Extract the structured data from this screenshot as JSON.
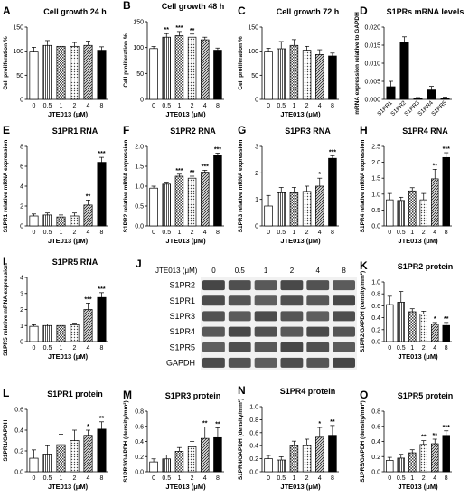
{
  "figure": {
    "chart_data": [
      {
        "letter": "A",
        "type": "bar",
        "title": "Cell growth 24 h",
        "ylabel": "Cell proliferation %",
        "xlabel": "JTE013 (μM)",
        "categories": [
          "0",
          "0.5",
          "1",
          "2",
          "4",
          "8"
        ],
        "ylim": [
          0,
          150
        ],
        "yticks": [
          0,
          50,
          100,
          150
        ],
        "values": [
          100,
          112,
          110,
          110,
          112,
          102
        ],
        "errors": [
          8,
          10,
          9,
          8,
          9,
          7
        ],
        "sig": [
          "",
          "",
          "",
          "",
          "",
          ""
        ],
        "patterns": [
          "white",
          "vstripe",
          "check",
          "dotted",
          "dense",
          "black"
        ]
      },
      {
        "letter": "B",
        "type": "bar",
        "title": "Cell growth 48 h",
        "ylabel": "Cell proliferation %",
        "xlabel": "JTE013 (μM)",
        "categories": [
          "0",
          "0.5",
          "1",
          "2",
          "4",
          "8"
        ],
        "ylim": [
          0,
          150
        ],
        "yticks": [
          0,
          50,
          100,
          150
        ],
        "values": [
          98,
          120,
          123,
          120,
          115,
          95
        ],
        "errors": [
          4,
          7,
          8,
          6,
          5,
          4
        ],
        "sig": [
          "",
          "**",
          "***",
          "**",
          "",
          ""
        ],
        "patterns": [
          "white",
          "vstripe",
          "check",
          "dotted",
          "dense",
          "black"
        ]
      },
      {
        "letter": "C",
        "type": "bar",
        "title": "Cell growth 72 h",
        "ylabel": "Cell proliferation %",
        "xlabel": "JTE013 (μM)",
        "categories": [
          "0",
          "0.5",
          "1",
          "2",
          "4",
          "8"
        ],
        "ylim": [
          0,
          150
        ],
        "yticks": [
          0,
          50,
          100,
          150
        ],
        "values": [
          100,
          105,
          112,
          102,
          93,
          90
        ],
        "errors": [
          6,
          15,
          12,
          8,
          10,
          6
        ],
        "sig": [
          "",
          "",
          "",
          "",
          "",
          ""
        ],
        "patterns": [
          "white",
          "vstripe",
          "check",
          "dotted",
          "dense",
          "black"
        ]
      },
      {
        "letter": "D",
        "type": "bar",
        "title": "S1PRs mRNA levels",
        "ylabel": "mRNA expression relative to GAPDH",
        "xlabel": "",
        "categories": [
          "S1PR1",
          "S1PR2",
          "S1PR3",
          "S1PR4",
          "S1PR5"
        ],
        "rotate": true,
        "ylim": [
          0,
          0.02
        ],
        "yticks": [
          0.0,
          0.005,
          0.01,
          0.015,
          0.02
        ],
        "ytickLabels": [
          "0.000",
          "0.005",
          "0.010",
          "0.015",
          "0.020"
        ],
        "values": [
          0.0035,
          0.0158,
          0.0003,
          0.0026,
          0.0004
        ],
        "errors": [
          0.0015,
          0.0015,
          0.0002,
          0.001,
          0.0002
        ],
        "sig": [
          "",
          "",
          "",
          "",
          ""
        ],
        "patterns": [
          "black",
          "black",
          "black",
          "black",
          "black"
        ]
      },
      {
        "letter": "E",
        "type": "bar",
        "title": "S1PR1 RNA",
        "ylabel": "S1PR1 relative mRNA expression",
        "xlabel": "JTE013 (μM)",
        "categories": [
          "0",
          "0.5",
          "1",
          "2",
          "4",
          "8"
        ],
        "ylim": [
          0,
          8
        ],
        "yticks": [
          0,
          2,
          4,
          6,
          8
        ],
        "values": [
          1.0,
          1.1,
          0.9,
          1.0,
          2.1,
          6.4
        ],
        "errors": [
          0.2,
          0.2,
          0.2,
          0.3,
          0.5,
          0.5
        ],
        "sig": [
          "",
          "",
          "",
          "",
          "**",
          "***"
        ],
        "patterns": [
          "white",
          "vstripe",
          "check",
          "dotted",
          "dense",
          "black"
        ]
      },
      {
        "letter": "F",
        "type": "bar",
        "title": "S1PR2 RNA",
        "ylabel": "S1PR2 relative mRNA expression",
        "xlabel": "JTE013 (μM)",
        "categories": [
          "0",
          "0.5",
          "1",
          "2",
          "4",
          "8"
        ],
        "ylim": [
          0,
          2.0
        ],
        "yticks": [
          0,
          0.5,
          1.0,
          1.5,
          2.0
        ],
        "ytickLabels": [
          "0.0",
          "0.5",
          "1.0",
          "1.5",
          "2.0"
        ],
        "values": [
          0.95,
          1.05,
          1.25,
          1.2,
          1.35,
          1.78
        ],
        "errors": [
          0.05,
          0.05,
          0.05,
          0.05,
          0.05,
          0.05
        ],
        "sig": [
          "",
          "",
          "***",
          "**",
          "***",
          "***"
        ],
        "patterns": [
          "white",
          "vstripe",
          "check",
          "dotted",
          "dense",
          "black"
        ]
      },
      {
        "letter": "G",
        "type": "bar",
        "title": "S1PR3 RNA",
        "ylabel": "S1PR3 relative mRNA expression",
        "xlabel": "JTE013 (μM)",
        "categories": [
          "0",
          "0.5",
          "1",
          "2",
          "4",
          "8"
        ],
        "ylim": [
          0,
          3
        ],
        "yticks": [
          0,
          1,
          2,
          3
        ],
        "values": [
          0.75,
          1.25,
          1.25,
          1.3,
          1.5,
          2.55
        ],
        "errors": [
          0.4,
          0.2,
          0.2,
          0.2,
          0.3,
          0.1
        ],
        "sig": [
          "",
          "",
          "",
          "",
          "*",
          "***"
        ],
        "patterns": [
          "white",
          "vstripe",
          "check",
          "dotted",
          "dense",
          "black"
        ]
      },
      {
        "letter": "H",
        "type": "bar",
        "title": "S1PR4 RNA",
        "ylabel": "S1PR4 relative mRNA expression",
        "xlabel": "JTE013 (μM)",
        "categories": [
          "0",
          "0.5",
          "1",
          "2",
          "4",
          "8"
        ],
        "ylim": [
          0,
          2.5
        ],
        "yticks": [
          0,
          0.5,
          1.0,
          1.5,
          2.0,
          2.5
        ],
        "ytickLabels": [
          "0.0",
          "0.5",
          "1.0",
          "1.5",
          "2.0",
          "2.5"
        ],
        "values": [
          0.82,
          0.8,
          1.1,
          0.82,
          1.48,
          2.15
        ],
        "errors": [
          0.2,
          0.1,
          0.1,
          0.2,
          0.3,
          0.15
        ],
        "sig": [
          "",
          "",
          "",
          "",
          "**",
          "***"
        ],
        "patterns": [
          "white",
          "vstripe",
          "check",
          "dotted",
          "dense",
          "black"
        ]
      },
      {
        "letter": "I",
        "type": "bar",
        "title": "S1PR5 RNA",
        "ylabel": "S1PR5 relative mRNA expression",
        "xlabel": "JTE013 (μM)",
        "categories": [
          "0",
          "0.5",
          "1",
          "2",
          "4",
          "8"
        ],
        "ylim": [
          0,
          4
        ],
        "yticks": [
          0,
          1,
          2,
          3,
          4
        ],
        "values": [
          0.95,
          1.0,
          1.0,
          1.05,
          2.0,
          2.75
        ],
        "errors": [
          0.1,
          0.1,
          0.1,
          0.1,
          0.4,
          0.3
        ],
        "sig": [
          "",
          "",
          "",
          "",
          "***",
          "***"
        ],
        "patterns": [
          "white",
          "vstripe",
          "check",
          "dotted",
          "dense",
          "black"
        ]
      },
      {
        "letter": "K",
        "type": "bar",
        "title": "S1PR2 protein",
        "ylabel": "S1PR2/GAPDH (density/mm²)",
        "xlabel": "JTE013 (μM)",
        "categories": [
          "0",
          "0.5",
          "1",
          "2",
          "4",
          "8"
        ],
        "ylim": [
          0,
          1.0
        ],
        "yticks": [
          0,
          0.2,
          0.4,
          0.6,
          0.8,
          1.0
        ],
        "ytickLabels": [
          "0.0",
          "0.2",
          "0.4",
          "0.6",
          "0.8",
          "1.0"
        ],
        "values": [
          0.62,
          0.66,
          0.5,
          0.46,
          0.29,
          0.27
        ],
        "errors": [
          0.14,
          0.18,
          0.05,
          0.05,
          0.03,
          0.05
        ],
        "sig": [
          "",
          "",
          "",
          "",
          "*",
          "**"
        ],
        "patterns": [
          "white",
          "vstripe",
          "check",
          "dotted",
          "dense",
          "black"
        ]
      },
      {
        "letter": "L",
        "type": "bar",
        "title": "S1PR1 protein",
        "ylabel": "S1PR1/GAPDH",
        "xlabel": "JTE013 (μM)",
        "categories": [
          "0",
          "0.5",
          "1",
          "2",
          "4",
          "8"
        ],
        "ylim": [
          0,
          0.6
        ],
        "yticks": [
          0,
          0.2,
          0.4,
          0.6
        ],
        "ytickLabels": [
          "0.0",
          "0.2",
          "0.4",
          "0.6"
        ],
        "values": [
          0.13,
          0.17,
          0.26,
          0.3,
          0.35,
          0.41
        ],
        "errors": [
          0.08,
          0.08,
          0.1,
          0.1,
          0.05,
          0.07
        ],
        "sig": [
          "",
          "",
          "",
          "",
          "*",
          "**"
        ],
        "patterns": [
          "white",
          "vstripe",
          "check",
          "dotted",
          "dense",
          "black"
        ]
      },
      {
        "letter": "M",
        "type": "bar",
        "title": "S1PR3 protein",
        "ylabel": "S1PR3/GAPDH (density/mm²)",
        "xlabel": "JTE013 (μM)",
        "categories": [
          "0",
          "0.5",
          "1",
          "2",
          "4",
          "8"
        ],
        "ylim": [
          0,
          0.8
        ],
        "yticks": [
          0,
          0.2,
          0.4,
          0.6,
          0.8
        ],
        "ytickLabels": [
          "0.0",
          "0.2",
          "0.4",
          "0.6",
          "0.8"
        ],
        "values": [
          0.13,
          0.17,
          0.27,
          0.33,
          0.44,
          0.45
        ],
        "errors": [
          0.04,
          0.05,
          0.05,
          0.07,
          0.15,
          0.13
        ],
        "sig": [
          "",
          "",
          "",
          "",
          "**",
          "**"
        ],
        "patterns": [
          "white",
          "vstripe",
          "check",
          "dotted",
          "dense",
          "black"
        ]
      },
      {
        "letter": "N",
        "type": "bar",
        "title": "S1PR4 protein",
        "ylabel": "S1PR4/GAPDH (density/mm²)",
        "xlabel": "JTE013 (μM)",
        "categories": [
          "0",
          "0.5",
          "1",
          "2",
          "4",
          "8"
        ],
        "ylim": [
          0,
          1.0
        ],
        "yticks": [
          0,
          0.2,
          0.4,
          0.6,
          0.8,
          1.0
        ],
        "ytickLabels": [
          "0.0",
          "0.2",
          "0.4",
          "0.6",
          "0.8",
          "1.0"
        ],
        "values": [
          0.2,
          0.18,
          0.4,
          0.4,
          0.53,
          0.56
        ],
        "errors": [
          0.05,
          0.05,
          0.07,
          0.1,
          0.15,
          0.15
        ],
        "sig": [
          "",
          "",
          "",
          "",
          "*",
          "**"
        ],
        "patterns": [
          "white",
          "vstripe",
          "check",
          "dotted",
          "dense",
          "black"
        ]
      },
      {
        "letter": "O",
        "type": "bar",
        "title": "S1PR5 protein",
        "ylabel": "S1PR5/GAPDH (density/mm²)",
        "xlabel": "JTE013 (μM)",
        "categories": [
          "0",
          "0.5",
          "1",
          "2",
          "4",
          "8"
        ],
        "ylim": [
          0,
          0.8
        ],
        "yticks": [
          0,
          0.2,
          0.4,
          0.6,
          0.8
        ],
        "ytickLabels": [
          "0.0",
          "0.2",
          "0.4",
          "0.6",
          "0.8"
        ],
        "values": [
          0.15,
          0.18,
          0.25,
          0.36,
          0.37,
          0.48
        ],
        "errors": [
          0.04,
          0.05,
          0.04,
          0.05,
          0.06,
          0.06
        ],
        "sig": [
          "",
          "",
          "",
          "**",
          "**",
          "***"
        ],
        "patterns": [
          "white",
          "vstripe",
          "check",
          "dotted",
          "dense",
          "black"
        ]
      }
    ],
    "blot": {
      "letter": "J",
      "treatment_label": "JTE013 (μM)",
      "concentrations": [
        "0",
        "0.5",
        "1",
        "2",
        "4",
        "8"
      ],
      "bands": [
        "S1PR2",
        "S1PR1",
        "S1PR3",
        "S1PR4",
        "S1PR5",
        "GAPDH"
      ]
    }
  }
}
